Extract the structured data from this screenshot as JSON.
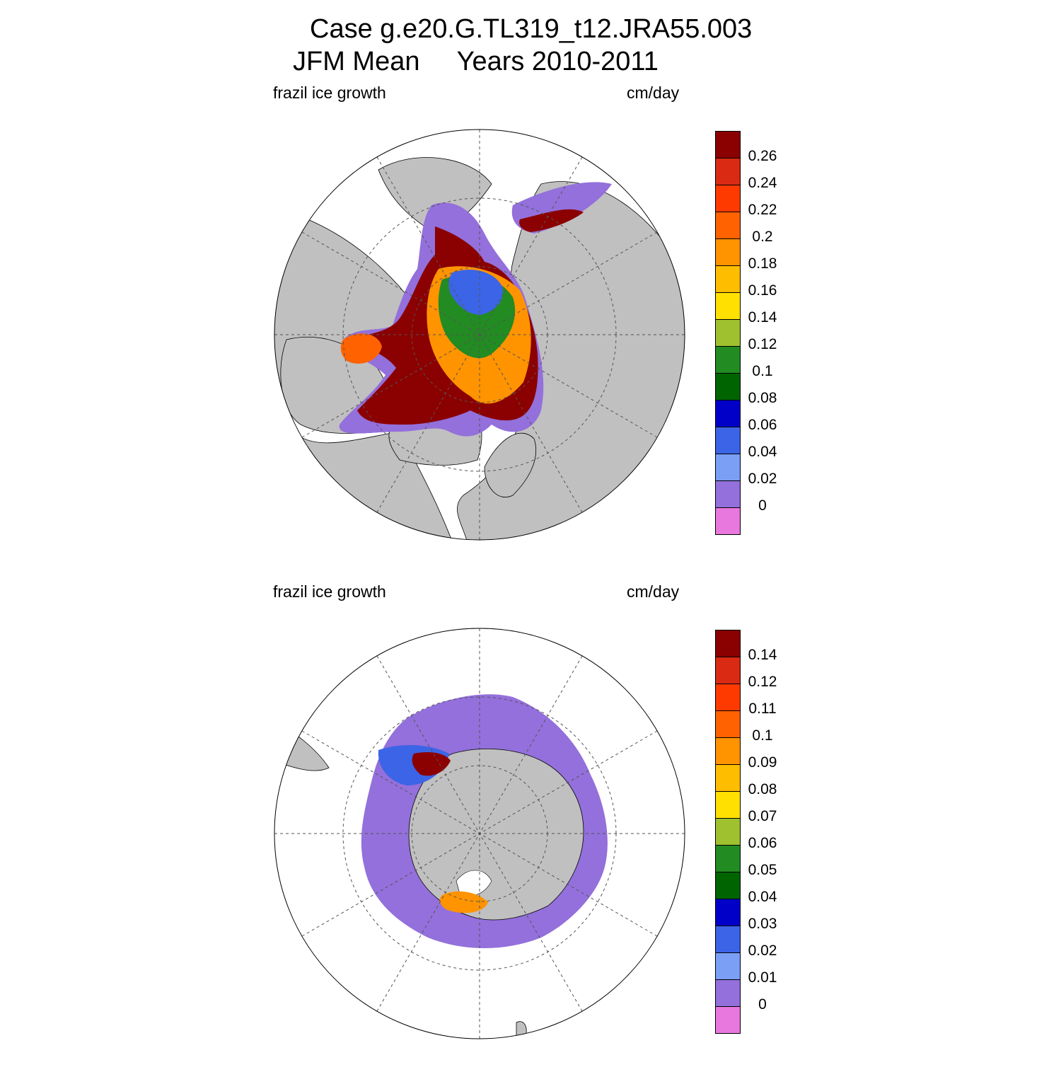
{
  "figure": {
    "title_line1": "Case g.e20.G.TL319_t12.JRA55.003",
    "title_line2": "JFM Mean     Years 2010-2011"
  },
  "panels": [
    {
      "id": "north",
      "left_label": "frazil ice growth",
      "right_label": "cm/day",
      "colorbar": {
        "colors": [
          "#8b0000",
          "#da2a14",
          "#ff3a00",
          "#ff6200",
          "#ff9300",
          "#ffbd00",
          "#ffe000",
          "#9fc12f",
          "#228b22",
          "#006400",
          "#0000c8",
          "#3c64e6",
          "#7a9ff5",
          "#9370db",
          "#e878dd"
        ],
        "tick_labels": [
          "0.26",
          "0.24",
          "0.22",
          "0.2",
          "0.18",
          "0.16",
          "0.14",
          "0.12",
          "0.1",
          "0.08",
          "0.06",
          "0.04",
          "0.02",
          "0"
        ]
      }
    },
    {
      "id": "south",
      "left_label": "frazil ice growth",
      "right_label": "cm/day",
      "colorbar": {
        "colors": [
          "#8b0000",
          "#da2a14",
          "#ff3a00",
          "#ff6200",
          "#ff9300",
          "#ffbd00",
          "#ffe000",
          "#9fc12f",
          "#228b22",
          "#006400",
          "#0000c8",
          "#3c64e6",
          "#7a9ff5",
          "#9370db",
          "#e878dd"
        ],
        "tick_labels": [
          "0.14",
          "0.12",
          "0.11",
          "0.1",
          "0.09",
          "0.08",
          "0.07",
          "0.06",
          "0.05",
          "0.04",
          "0.03",
          "0.02",
          "0.01",
          "0"
        ]
      }
    }
  ],
  "map_colors": {
    "land": "#c0c0c0",
    "ocean": "#ffffff",
    "grid": "#555555"
  }
}
